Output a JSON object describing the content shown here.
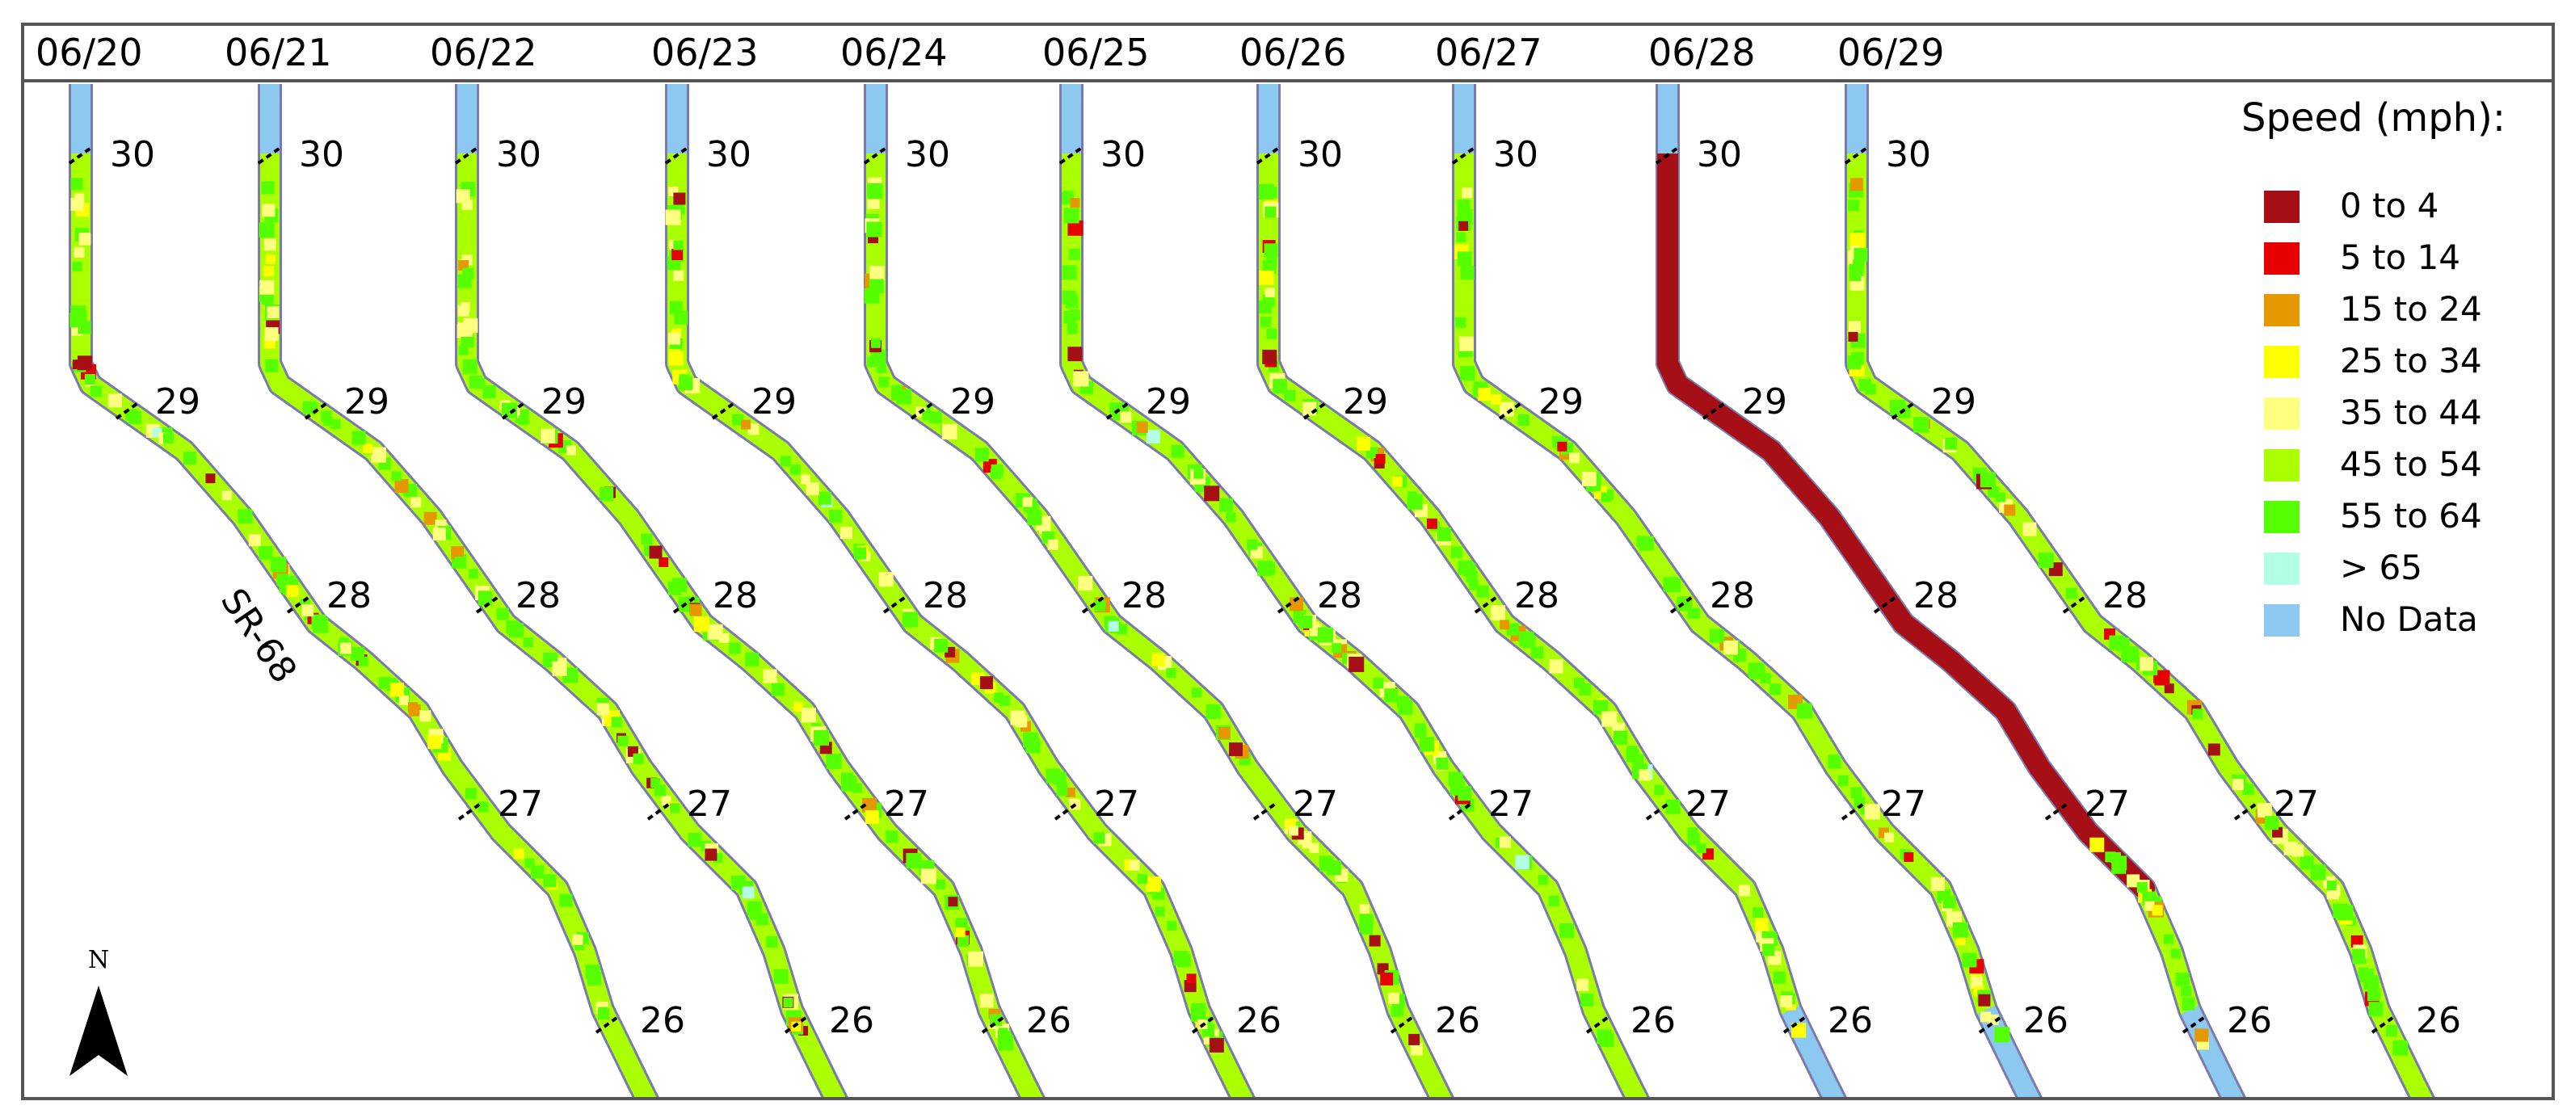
{
  "dates": [
    "06/20",
    "06/21",
    "06/22",
    "06/23",
    "06/24",
    "06/25",
    "06/26",
    "06/27",
    "06/28",
    "06/29"
  ],
  "road_label": "SR-68",
  "mileposts": [
    "30",
    "29",
    "28",
    "27",
    "26"
  ],
  "legend": {
    "title": "Speed (mph):",
    "items": [
      {
        "label": "0 to 4",
        "color": "#a50f15"
      },
      {
        "label": "5 to 14",
        "color": "#e60000"
      },
      {
        "label": "15 to 24",
        "color": "#e69800"
      },
      {
        "label": "25 to 34",
        "color": "#ffff00"
      },
      {
        "label": "35 to 44",
        "color": "#ffff80"
      },
      {
        "label": "45 to 54",
        "color": "#aaff00"
      },
      {
        "label": "55 to 64",
        "color": "#55ff00"
      },
      {
        "label": "> 65",
        "color": "#b2ffe6"
      },
      {
        "label": "No Data",
        "color": "#8cc8f0"
      }
    ]
  },
  "north_label": "N",
  "colors": {
    "frame": "#555555",
    "road_outline": "#7a7ab0",
    "no_data_road": "#8cc8f0",
    "typical_speed": "#aaff00"
  }
}
